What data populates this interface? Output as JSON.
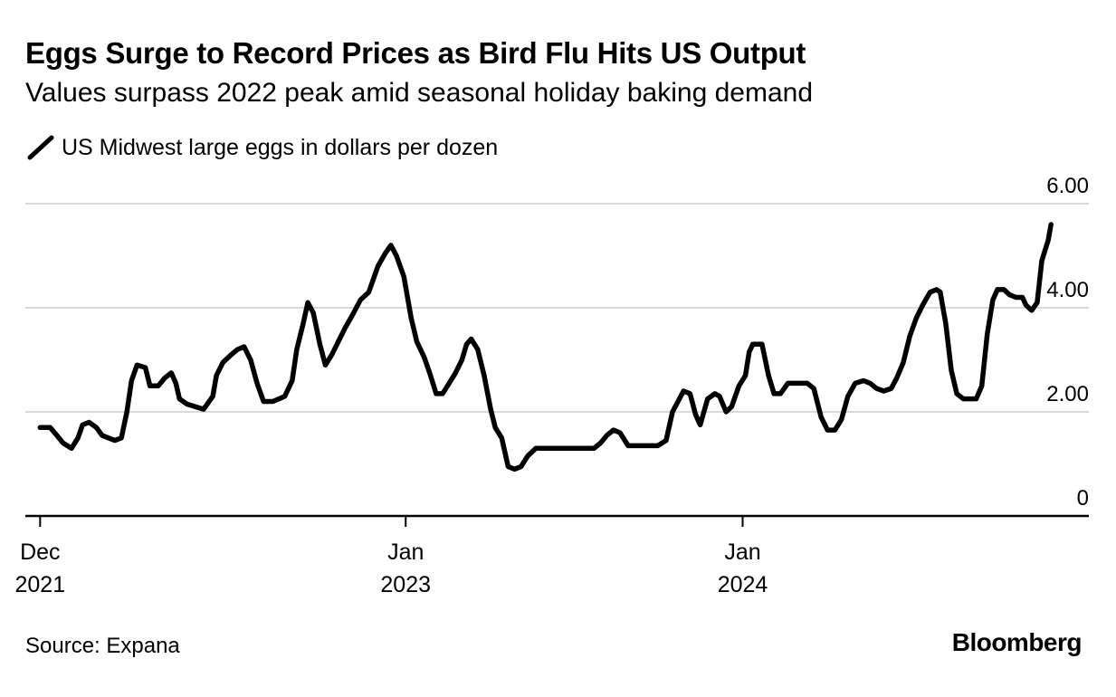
{
  "header": {
    "title": "Eggs Surge to Record Prices as Bird Flu Hits US Output",
    "subtitle": "Values surpass 2022 peak amid seasonal holiday baking demand"
  },
  "footer": {
    "source": "Source: Expana",
    "brand": "Bloomberg"
  },
  "colors": {
    "line": "#000000",
    "grid": "#d9d9d9",
    "axis": "#000000"
  },
  "chart_data": {
    "type": "line",
    "title": "Eggs Surge to Record Prices as Bird Flu Hits US Output",
    "subtitle": "Values surpass 2022 peak amid seasonal holiday baking demand",
    "xlabel": "",
    "ylabel": "US Midwest large eggs in dollars per dozen",
    "ylim": [
      0,
      6
    ],
    "yticks": [
      {
        "value": 0,
        "label": "0"
      },
      {
        "value": 2,
        "label": "2.00"
      },
      {
        "value": 4,
        "label": "4.00"
      },
      {
        "value": 6,
        "label": "6.00"
      }
    ],
    "xlim": [
      "2021-11-15",
      "2025-01-10"
    ],
    "xticks": [
      {
        "date": "2021-12-01",
        "line1": "Dec",
        "line2": "2021"
      },
      {
        "date": "2023-01-01",
        "line1": "Jan",
        "line2": "2023"
      },
      {
        "date": "2024-01-01",
        "line1": "Jan",
        "line2": "2024"
      }
    ],
    "grid": true,
    "legend_position": "top-left",
    "series": [
      {
        "name": "US Midwest large eggs in dollars per dozen",
        "points": [
          [
            "2021-12-01",
            1.7
          ],
          [
            "2021-12-12",
            1.7
          ],
          [
            "2021-12-19",
            1.55
          ],
          [
            "2021-12-26",
            1.4
          ],
          [
            "2022-01-04",
            1.3
          ],
          [
            "2022-01-11",
            1.5
          ],
          [
            "2022-01-16",
            1.75
          ],
          [
            "2022-01-23",
            1.8
          ],
          [
            "2022-01-31",
            1.7
          ],
          [
            "2022-02-06",
            1.55
          ],
          [
            "2022-02-13",
            1.5
          ],
          [
            "2022-02-20",
            1.45
          ],
          [
            "2022-02-27",
            1.5
          ],
          [
            "2022-03-05",
            2.0
          ],
          [
            "2022-03-10",
            2.6
          ],
          [
            "2022-03-16",
            2.9
          ],
          [
            "2022-03-25",
            2.85
          ],
          [
            "2022-03-30",
            2.5
          ],
          [
            "2022-04-08",
            2.5
          ],
          [
            "2022-04-15",
            2.65
          ],
          [
            "2022-04-22",
            2.75
          ],
          [
            "2022-04-27",
            2.55
          ],
          [
            "2022-05-01",
            2.25
          ],
          [
            "2022-05-09",
            2.15
          ],
          [
            "2022-05-18",
            2.1
          ],
          [
            "2022-05-27",
            2.05
          ],
          [
            "2022-06-06",
            2.3
          ],
          [
            "2022-06-10",
            2.7
          ],
          [
            "2022-06-17",
            2.95
          ],
          [
            "2022-06-26",
            3.1
          ],
          [
            "2022-07-03",
            3.2
          ],
          [
            "2022-07-10",
            3.25
          ],
          [
            "2022-07-17",
            3.0
          ],
          [
            "2022-07-24",
            2.55
          ],
          [
            "2022-07-31",
            2.2
          ],
          [
            "2022-08-10",
            2.2
          ],
          [
            "2022-08-17",
            2.25
          ],
          [
            "2022-08-23",
            2.3
          ],
          [
            "2022-08-31",
            2.6
          ],
          [
            "2022-09-05",
            3.2
          ],
          [
            "2022-09-12",
            3.7
          ],
          [
            "2022-09-17",
            4.1
          ],
          [
            "2022-09-23",
            3.9
          ],
          [
            "2022-09-30",
            3.3
          ],
          [
            "2022-10-06",
            2.9
          ],
          [
            "2022-10-13",
            3.1
          ],
          [
            "2022-10-20",
            3.35
          ],
          [
            "2022-10-27",
            3.6
          ],
          [
            "2022-11-04",
            3.85
          ],
          [
            "2022-11-13",
            4.15
          ],
          [
            "2022-11-22",
            4.3
          ],
          [
            "2022-12-02",
            4.8
          ],
          [
            "2022-12-10",
            5.05
          ],
          [
            "2022-12-16",
            5.2
          ],
          [
            "2022-12-22",
            5.0
          ],
          [
            "2022-12-30",
            4.6
          ],
          [
            "2023-01-07",
            3.8
          ],
          [
            "2023-01-13",
            3.35
          ],
          [
            "2023-01-21",
            3.05
          ],
          [
            "2023-01-27",
            2.75
          ],
          [
            "2023-02-03",
            2.35
          ],
          [
            "2023-02-10",
            2.35
          ],
          [
            "2023-02-17",
            2.55
          ],
          [
            "2023-02-24",
            2.75
          ],
          [
            "2023-03-03",
            3.0
          ],
          [
            "2023-03-08",
            3.3
          ],
          [
            "2023-03-13",
            3.4
          ],
          [
            "2023-03-20",
            3.2
          ],
          [
            "2023-03-27",
            2.7
          ],
          [
            "2023-04-03",
            2.05
          ],
          [
            "2023-04-08",
            1.7
          ],
          [
            "2023-04-15",
            1.5
          ],
          [
            "2023-04-22",
            0.95
          ],
          [
            "2023-04-29",
            0.9
          ],
          [
            "2023-05-06",
            0.95
          ],
          [
            "2023-05-13",
            1.15
          ],
          [
            "2023-05-22",
            1.3
          ],
          [
            "2023-06-20",
            1.3
          ],
          [
            "2023-07-24",
            1.3
          ],
          [
            "2023-07-31",
            1.4
          ],
          [
            "2023-08-07",
            1.55
          ],
          [
            "2023-08-14",
            1.65
          ],
          [
            "2023-08-21",
            1.6
          ],
          [
            "2023-08-30",
            1.35
          ],
          [
            "2023-09-10",
            1.35
          ],
          [
            "2023-09-20",
            1.35
          ],
          [
            "2023-10-01",
            1.35
          ],
          [
            "2023-10-10",
            1.45
          ],
          [
            "2023-10-17",
            2.0
          ],
          [
            "2023-10-23",
            2.2
          ],
          [
            "2023-10-29",
            2.4
          ],
          [
            "2023-11-05",
            2.35
          ],
          [
            "2023-11-11",
            1.95
          ],
          [
            "2023-11-16",
            1.75
          ],
          [
            "2023-11-24",
            2.25
          ],
          [
            "2023-12-02",
            2.35
          ],
          [
            "2023-12-07",
            2.3
          ],
          [
            "2023-12-14",
            2.0
          ],
          [
            "2023-12-20",
            2.1
          ],
          [
            "2023-12-28",
            2.5
          ],
          [
            "2024-01-04",
            2.7
          ],
          [
            "2024-01-08",
            3.15
          ],
          [
            "2024-01-12",
            3.3
          ],
          [
            "2024-01-22",
            3.3
          ],
          [
            "2024-01-29",
            2.7
          ],
          [
            "2024-02-04",
            2.35
          ],
          [
            "2024-02-11",
            2.35
          ],
          [
            "2024-02-19",
            2.55
          ],
          [
            "2024-02-29",
            2.55
          ],
          [
            "2024-03-11",
            2.55
          ],
          [
            "2024-03-18",
            2.45
          ],
          [
            "2024-03-26",
            1.9
          ],
          [
            "2024-04-02",
            1.65
          ],
          [
            "2024-04-10",
            1.65
          ],
          [
            "2024-04-17",
            1.85
          ],
          [
            "2024-04-24",
            2.3
          ],
          [
            "2024-05-02",
            2.55
          ],
          [
            "2024-05-11",
            2.6
          ],
          [
            "2024-05-18",
            2.55
          ],
          [
            "2024-05-25",
            2.45
          ],
          [
            "2024-06-02",
            2.4
          ],
          [
            "2024-06-10",
            2.45
          ],
          [
            "2024-06-16",
            2.65
          ],
          [
            "2024-06-23",
            2.95
          ],
          [
            "2024-06-30",
            3.45
          ],
          [
            "2024-07-07",
            3.8
          ],
          [
            "2024-07-14",
            4.05
          ],
          [
            "2024-07-22",
            4.3
          ],
          [
            "2024-07-29",
            4.35
          ],
          [
            "2024-08-02",
            4.3
          ],
          [
            "2024-08-08",
            3.7
          ],
          [
            "2024-08-14",
            2.8
          ],
          [
            "2024-08-20",
            2.35
          ],
          [
            "2024-08-27",
            2.25
          ],
          [
            "2024-09-03",
            2.25
          ],
          [
            "2024-09-10",
            2.25
          ],
          [
            "2024-09-16",
            2.5
          ],
          [
            "2024-09-22",
            3.5
          ],
          [
            "2024-09-28",
            4.15
          ],
          [
            "2024-10-03",
            4.35
          ],
          [
            "2024-10-10",
            4.35
          ],
          [
            "2024-10-16",
            4.25
          ],
          [
            "2024-10-23",
            4.2
          ],
          [
            "2024-10-30",
            4.2
          ],
          [
            "2024-11-03",
            4.05
          ],
          [
            "2024-11-09",
            3.95
          ],
          [
            "2024-11-15",
            4.1
          ],
          [
            "2024-11-20",
            4.9
          ],
          [
            "2024-11-27",
            5.3
          ],
          [
            "2024-11-30",
            5.6
          ]
        ]
      }
    ]
  }
}
